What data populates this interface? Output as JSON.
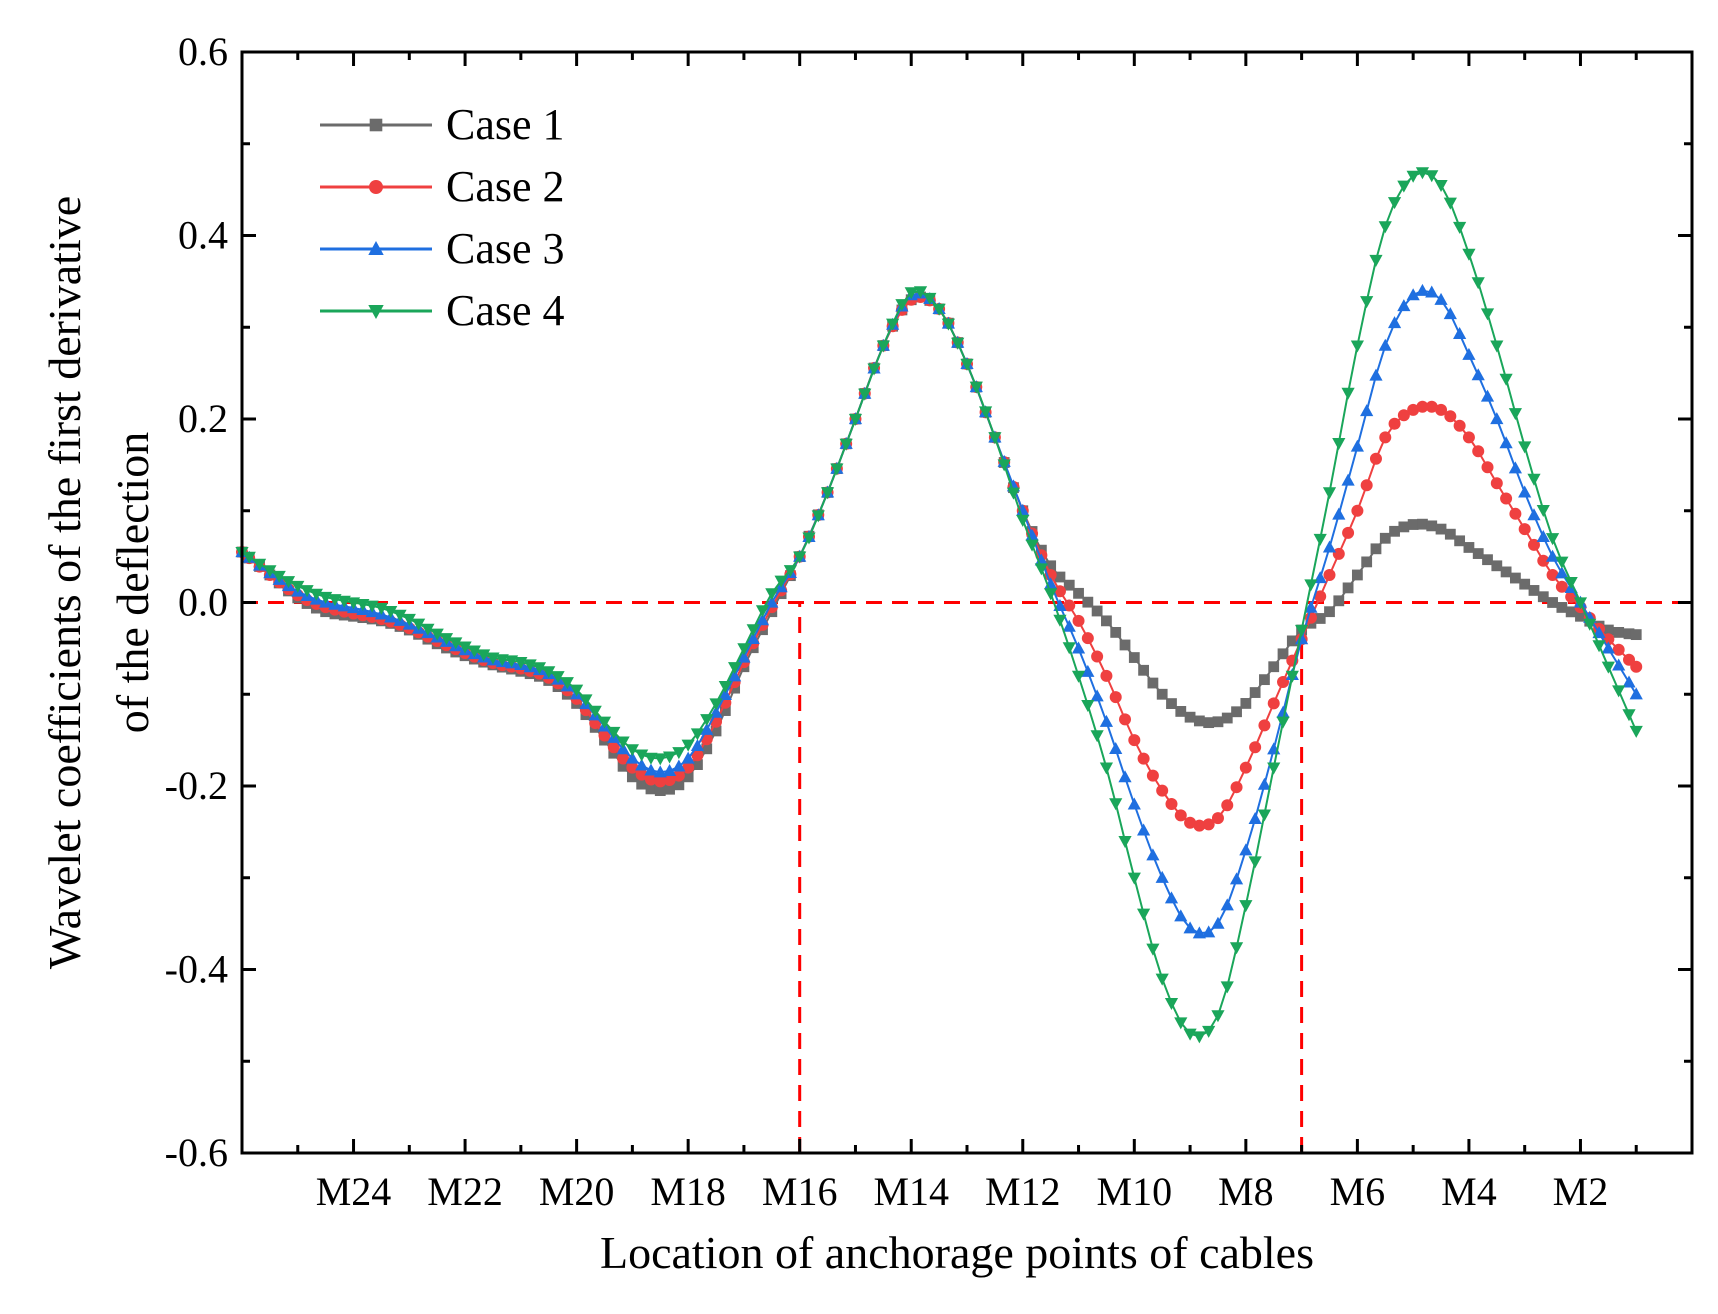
{
  "chart_data": {
    "type": "line",
    "xlabel": "Location of anchorage points of cables",
    "ylabel": "Wavelet coefficients of the first  derivative",
    "ylabel_line2": "of the deflection",
    "x_categories": [
      "M24",
      "M22",
      "M20",
      "M18",
      "M16",
      "M14",
      "M12",
      "M10",
      "M8",
      "M6",
      "M4",
      "M2"
    ],
    "x_category_positions": [
      24,
      22,
      20,
      18,
      16,
      14,
      12,
      10,
      8,
      6,
      4,
      2
    ],
    "xlim": [
      26,
      0
    ],
    "ylim": [
      -0.6,
      0.6
    ],
    "y_ticks": [
      "-0.6",
      "-0.4",
      "-0.2",
      "0.0",
      "0.2",
      "0.4",
      "0.6"
    ],
    "y_tick_values": [
      -0.6,
      -0.4,
      -0.2,
      0.0,
      0.2,
      0.4,
      0.6
    ],
    "legend_position": "top-left",
    "reference_lines": [
      {
        "kind": "horizontal",
        "y": 0.0,
        "color": "#ff0000",
        "style": "dashed"
      },
      {
        "kind": "vertical",
        "x": 16.0,
        "y_to": 0.0,
        "color": "#ff0000",
        "style": "dashed"
      },
      {
        "kind": "vertical",
        "x": 7.0,
        "y_to": -0.04,
        "color": "#ff0000",
        "style": "dashed"
      }
    ],
    "series": [
      {
        "name": "Case 1",
        "color": "#6b6b6b",
        "marker": "square",
        "x": [
          26,
          25.5,
          25,
          24.5,
          24,
          23.5,
          23,
          22.5,
          22,
          21.5,
          21,
          20.5,
          20,
          19.5,
          19,
          18.5,
          18,
          17.5,
          17,
          16.5,
          16,
          15.5,
          15,
          14.5,
          14,
          13.5,
          13,
          12.5,
          12,
          11.5,
          11,
          10.5,
          10,
          9.5,
          9,
          8.5,
          8,
          7.5,
          7,
          6.5,
          6,
          5.5,
          5,
          4.5,
          4,
          3.5,
          3,
          2.5,
          2,
          1.5,
          1
        ],
        "y": [
          0.055,
          0.03,
          0.005,
          -0.01,
          -0.015,
          -0.02,
          -0.03,
          -0.045,
          -0.058,
          -0.068,
          -0.075,
          -0.085,
          -0.11,
          -0.15,
          -0.19,
          -0.205,
          -0.19,
          -0.14,
          -0.07,
          -0.01,
          0.05,
          0.12,
          0.2,
          0.28,
          0.33,
          0.32,
          0.26,
          0.18,
          0.1,
          0.04,
          0.01,
          -0.02,
          -0.06,
          -0.1,
          -0.125,
          -0.13,
          -0.11,
          -0.07,
          -0.03,
          -0.01,
          0.03,
          0.07,
          0.085,
          0.08,
          0.06,
          0.04,
          0.02,
          0.0,
          -0.015,
          -0.03,
          -0.035
        ]
      },
      {
        "name": "Case 2",
        "color": "#ef4040",
        "marker": "circle",
        "x": [
          26,
          25.5,
          25,
          24.5,
          24,
          23.5,
          23,
          22.5,
          22,
          21.5,
          21,
          20.5,
          20,
          19.5,
          19,
          18.5,
          18,
          17.5,
          17,
          16.5,
          16,
          15.5,
          15,
          14.5,
          14,
          13.5,
          13,
          12.5,
          12,
          11.5,
          11,
          10.5,
          10,
          9.5,
          9,
          8.5,
          8,
          7.5,
          7,
          6.5,
          6,
          5.5,
          5,
          4.5,
          4,
          3.5,
          3,
          2.5,
          2,
          1.5,
          1
        ],
        "y": [
          0.055,
          0.03,
          0.008,
          -0.005,
          -0.012,
          -0.018,
          -0.028,
          -0.042,
          -0.055,
          -0.066,
          -0.072,
          -0.082,
          -0.105,
          -0.145,
          -0.18,
          -0.195,
          -0.18,
          -0.13,
          -0.065,
          -0.005,
          0.05,
          0.12,
          0.2,
          0.28,
          0.33,
          0.32,
          0.26,
          0.18,
          0.1,
          0.03,
          -0.02,
          -0.08,
          -0.15,
          -0.205,
          -0.24,
          -0.235,
          -0.18,
          -0.11,
          -0.04,
          0.03,
          0.1,
          0.18,
          0.21,
          0.21,
          0.18,
          0.13,
          0.08,
          0.03,
          -0.005,
          -0.04,
          -0.07
        ]
      },
      {
        "name": "Case 3",
        "color": "#1f6fe0",
        "marker": "triangle-up",
        "x": [
          26,
          25.5,
          25,
          24.5,
          24,
          23.5,
          23,
          22.5,
          22,
          21.5,
          21,
          20.5,
          20,
          19.5,
          19,
          18.5,
          18,
          17.5,
          17,
          16.5,
          16,
          15.5,
          15,
          14.5,
          14,
          13.5,
          13,
          12.5,
          12,
          11.5,
          11,
          10.5,
          10,
          9.5,
          9,
          8.5,
          8,
          7.5,
          7,
          6.5,
          6,
          5.5,
          5,
          4.5,
          4,
          3.5,
          3,
          2.5,
          2,
          1.5,
          1
        ],
        "y": [
          0.055,
          0.032,
          0.012,
          0.0,
          -0.006,
          -0.013,
          -0.024,
          -0.038,
          -0.052,
          -0.063,
          -0.068,
          -0.078,
          -0.1,
          -0.135,
          -0.17,
          -0.185,
          -0.17,
          -0.12,
          -0.06,
          0.0,
          0.05,
          0.12,
          0.2,
          0.28,
          0.335,
          0.32,
          0.26,
          0.18,
          0.1,
          0.02,
          -0.05,
          -0.13,
          -0.22,
          -0.3,
          -0.355,
          -0.35,
          -0.27,
          -0.16,
          -0.04,
          0.06,
          0.17,
          0.28,
          0.335,
          0.33,
          0.27,
          0.2,
          0.12,
          0.05,
          0.0,
          -0.05,
          -0.1
        ]
      },
      {
        "name": "Case 4",
        "color": "#1aa65a",
        "marker": "triangle-down",
        "x": [
          26,
          25.5,
          25,
          24.5,
          24,
          23.5,
          23,
          22.5,
          22,
          21.5,
          21,
          20.5,
          20,
          19.5,
          19,
          18.5,
          18,
          17.5,
          17,
          16.5,
          16,
          15.5,
          15,
          14.5,
          14,
          13.5,
          13,
          12.5,
          12,
          11.5,
          11,
          10.5,
          10,
          9.5,
          9,
          8.5,
          8,
          7.5,
          7,
          6.5,
          6,
          5.5,
          5,
          4.5,
          4,
          3.5,
          3,
          2.5,
          2,
          1.5,
          1
        ],
        "y": [
          0.055,
          0.035,
          0.018,
          0.006,
          0.0,
          -0.006,
          -0.018,
          -0.034,
          -0.048,
          -0.06,
          -0.065,
          -0.075,
          -0.095,
          -0.13,
          -0.16,
          -0.17,
          -0.155,
          -0.11,
          -0.05,
          0.01,
          0.05,
          0.12,
          0.2,
          0.28,
          0.338,
          0.32,
          0.26,
          0.18,
          0.09,
          0.01,
          -0.08,
          -0.18,
          -0.3,
          -0.41,
          -0.47,
          -0.45,
          -0.33,
          -0.18,
          -0.03,
          0.12,
          0.28,
          0.41,
          0.465,
          0.455,
          0.38,
          0.28,
          0.17,
          0.07,
          0.0,
          -0.07,
          -0.14
        ]
      }
    ]
  }
}
